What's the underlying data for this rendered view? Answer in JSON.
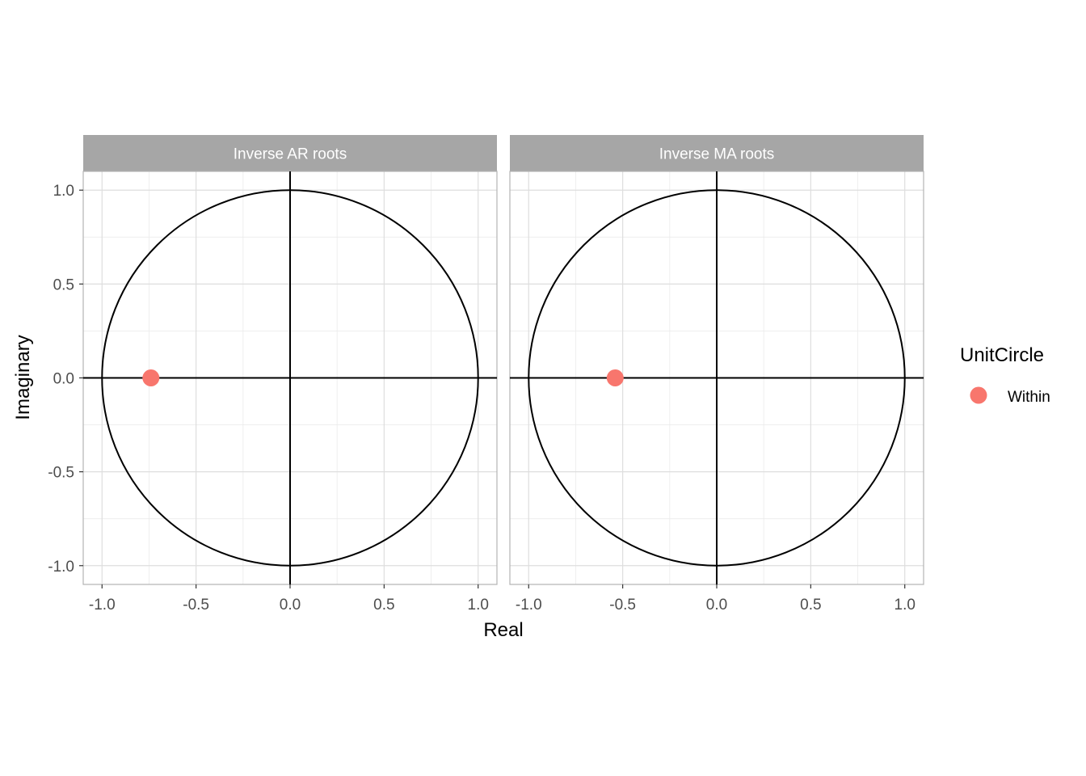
{
  "chart_data": {
    "type": "scatter",
    "xlabel": "Real",
    "ylabel": "Imaginary",
    "xlim": [
      -1.1,
      1.1
    ],
    "ylim": [
      -1.1,
      1.1
    ],
    "x_ticks": [
      -1.0,
      -0.5,
      0.0,
      0.5,
      1.0
    ],
    "x_tick_labels": [
      "-1.0",
      "-0.5",
      "0.0",
      "0.5",
      "1.0"
    ],
    "y_ticks": [
      -1.0,
      -0.5,
      0.0,
      0.5,
      1.0
    ],
    "y_tick_labels": [
      "-1.0",
      "-0.5",
      "0.0",
      "0.5",
      "1.0"
    ],
    "grid": true,
    "unit_circle": true,
    "reference_lines": {
      "x": 0,
      "y": 0
    },
    "point_color": "#F8766D",
    "panels": [
      {
        "title": "Inverse AR roots",
        "points": [
          {
            "x": -0.74,
            "y": 0.0,
            "group": "Within"
          }
        ]
      },
      {
        "title": "Inverse MA roots",
        "points": [
          {
            "x": -0.54,
            "y": 0.0,
            "group": "Within"
          }
        ]
      }
    ],
    "legend": {
      "title": "UnitCircle",
      "placement": "right",
      "entries": [
        {
          "label": "Within",
          "color": "#F8766D"
        }
      ]
    }
  }
}
